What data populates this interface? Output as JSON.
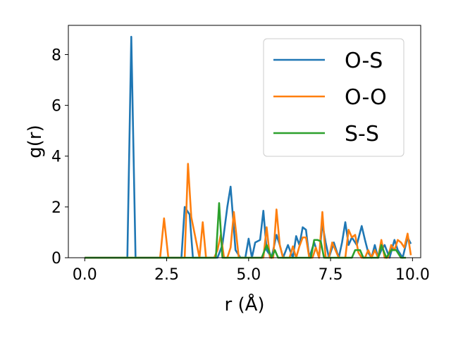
{
  "chart_data": {
    "type": "line",
    "title": "",
    "xlabel": "r (Å)",
    "ylabel": "g(r)",
    "xlim": [
      -0.5,
      10.25
    ],
    "ylim": [
      0,
      9.15
    ],
    "xticks": [
      0.0,
      2.5,
      5.0,
      7.5,
      10.0
    ],
    "xtick_labels": [
      "0.0",
      "2.5",
      "5.0",
      "7.5",
      "10.0"
    ],
    "yticks": [
      0,
      2,
      4,
      6,
      8
    ],
    "ytick_labels": [
      "0",
      "2",
      "4",
      "6",
      "8"
    ],
    "grid": false,
    "legend_position": "top-right",
    "series": [
      {
        "name": "O-S",
        "color": "#1f77b4",
        "x": [
          0.0,
          1.3,
          1.42,
          1.55,
          2.95,
          3.05,
          3.2,
          3.3,
          3.45,
          4.05,
          4.2,
          4.35,
          4.45,
          4.6,
          4.75,
          4.9,
          5.0,
          5.1,
          5.2,
          5.35,
          5.45,
          5.55,
          5.7,
          5.85,
          5.95,
          6.05,
          6.2,
          6.35,
          6.45,
          6.55,
          6.65,
          6.75,
          6.85,
          7.0,
          7.15,
          7.25,
          7.35,
          7.45,
          7.6,
          7.75,
          7.85,
          7.95,
          8.05,
          8.15,
          8.3,
          8.45,
          8.55,
          8.65,
          8.75,
          8.85,
          8.95,
          9.05,
          9.15,
          9.3,
          9.45,
          9.55,
          9.7,
          9.85,
          9.95
        ],
        "y": [
          0.0,
          0.0,
          8.7,
          0.0,
          0.0,
          2.0,
          1.7,
          0.0,
          0.0,
          0.0,
          0.5,
          2.0,
          2.8,
          0.3,
          0.0,
          0.0,
          0.75,
          0.0,
          0.6,
          0.7,
          1.85,
          0.3,
          0.0,
          0.9,
          0.5,
          0.0,
          0.5,
          0.0,
          0.85,
          0.5,
          1.2,
          1.1,
          0.0,
          0.6,
          0.0,
          1.35,
          0.6,
          0.0,
          0.6,
          0.0,
          0.6,
          1.4,
          0.5,
          0.8,
          0.5,
          1.25,
          0.7,
          0.2,
          0.0,
          0.5,
          0.0,
          0.3,
          0.5,
          0.0,
          0.7,
          0.3,
          0.0,
          0.8,
          0.55
        ]
      },
      {
        "name": "O-O",
        "color": "#ff7f0e",
        "x": [
          0.0,
          2.3,
          2.42,
          2.55,
          2.95,
          3.05,
          3.15,
          3.25,
          3.5,
          3.6,
          3.7,
          3.95,
          4.05,
          4.15,
          4.25,
          4.35,
          4.45,
          4.55,
          4.7,
          4.85,
          5.0,
          5.2,
          5.45,
          5.55,
          5.65,
          5.75,
          5.85,
          5.95,
          6.05,
          6.25,
          6.35,
          6.45,
          6.55,
          6.65,
          6.75,
          6.85,
          6.95,
          7.05,
          7.15,
          7.25,
          7.35,
          7.45,
          7.55,
          7.65,
          7.75,
          7.85,
          7.95,
          8.05,
          8.15,
          8.25,
          8.35,
          8.45,
          8.55,
          8.65,
          8.75,
          8.85,
          8.95,
          9.05,
          9.15,
          9.25,
          9.35,
          9.45,
          9.55,
          9.65,
          9.75,
          9.85,
          9.95
        ],
        "y": [
          0.0,
          0.0,
          1.55,
          0.0,
          0.0,
          0.0,
          3.7,
          1.6,
          0.0,
          1.4,
          0.0,
          0.0,
          0.3,
          0.9,
          0.0,
          0.0,
          0.4,
          1.8,
          0.0,
          0.0,
          0.0,
          0.0,
          0.0,
          1.2,
          0.0,
          0.0,
          1.9,
          0.5,
          0.0,
          0.0,
          0.45,
          0.0,
          0.45,
          0.8,
          0.8,
          0.0,
          0.0,
          0.4,
          0.0,
          1.8,
          0.0,
          0.0,
          0.6,
          0.3,
          0.0,
          0.0,
          0.0,
          1.1,
          0.8,
          0.9,
          0.2,
          0.0,
          0.0,
          0.3,
          0.0,
          0.3,
          0.0,
          0.7,
          0.0,
          0.0,
          0.5,
          0.3,
          0.7,
          0.6,
          0.4,
          0.95,
          0.1
        ]
      },
      {
        "name": "S-S",
        "color": "#2ca02c",
        "x": [
          0.0,
          4.0,
          4.1,
          4.2,
          4.3,
          4.4,
          5.4,
          5.55,
          5.7,
          5.8,
          5.9,
          6.9,
          7.0,
          7.1,
          7.2,
          7.3,
          7.4,
          7.5,
          8.15,
          8.25,
          8.4,
          8.5,
          8.65,
          8.75,
          8.95,
          9.05,
          9.2,
          9.35,
          9.5,
          9.65,
          9.8
        ],
        "y": [
          0.0,
          0.0,
          2.15,
          0.0,
          0.0,
          0.0,
          0.0,
          0.5,
          0.0,
          0.3,
          0.0,
          0.0,
          0.7,
          0.7,
          0.65,
          0.0,
          0.0,
          0.0,
          0.0,
          0.3,
          0.3,
          0.0,
          0.0,
          0.0,
          0.0,
          0.5,
          0.0,
          0.3,
          0.3,
          0.0,
          0.0
        ]
      }
    ]
  }
}
